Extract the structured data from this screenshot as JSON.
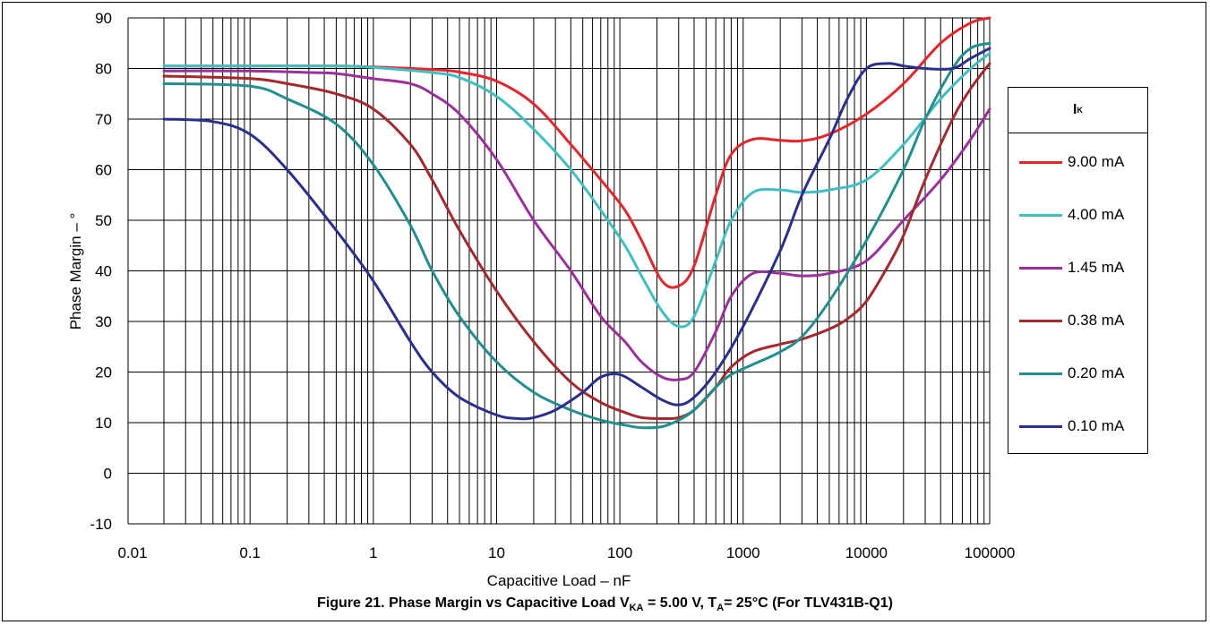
{
  "caption": {
    "prefix": "Figure 21. Phase Margin vs Capacitive Load V",
    "vka_sub": "KA",
    "middle": " = 5.00 V, T",
    "ta_sub": "A",
    "suffix": "= 25°C (For TLV431B-Q1)"
  },
  "legend": {
    "title_main": "I",
    "title_sub": "K"
  },
  "chart_data": {
    "type": "line",
    "xlabel": "Capacitive Load – nF",
    "ylabel": "Phase Margin – °",
    "xscale": "log",
    "xlim": [
      0.01,
      100000
    ],
    "ylim": [
      -10,
      90
    ],
    "x_ticks": [
      "0.01",
      "0.1",
      "1",
      "10",
      "100",
      "1000",
      "10000",
      "100000"
    ],
    "y_ticks": [
      "-10",
      "0",
      "10",
      "20",
      "30",
      "40",
      "50",
      "60",
      "70",
      "80",
      "90"
    ],
    "grid": true,
    "legend_position": "right",
    "series": [
      {
        "name": "9.00 mA",
        "color": "#e8242a",
        "points": [
          [
            0.02,
            80.5
          ],
          [
            0.1,
            80.5
          ],
          [
            0.5,
            80.5
          ],
          [
            1,
            80.3
          ],
          [
            3,
            79.8
          ],
          [
            5,
            79.3
          ],
          [
            10,
            77.5
          ],
          [
            20,
            73
          ],
          [
            40,
            65
          ],
          [
            70,
            58
          ],
          [
            110,
            52
          ],
          [
            150,
            46
          ],
          [
            220,
            38
          ],
          [
            300,
            37
          ],
          [
            400,
            41
          ],
          [
            600,
            55
          ],
          [
            800,
            63
          ],
          [
            1200,
            66
          ],
          [
            2000,
            65.8
          ],
          [
            3000,
            65.7
          ],
          [
            5000,
            67
          ],
          [
            10000,
            71
          ],
          [
            20000,
            77
          ],
          [
            40000,
            85
          ],
          [
            70000,
            89
          ],
          [
            100000,
            90
          ]
        ]
      },
      {
        "name": "4.00 mA",
        "color": "#3fbfbf",
        "points": [
          [
            0.02,
            80.5
          ],
          [
            0.1,
            80.5
          ],
          [
            0.5,
            80.5
          ],
          [
            1,
            80.2
          ],
          [
            3,
            79.2
          ],
          [
            5,
            78.2
          ],
          [
            10,
            74.5
          ],
          [
            20,
            68
          ],
          [
            40,
            60
          ],
          [
            70,
            52
          ],
          [
            110,
            45
          ],
          [
            150,
            39
          ],
          [
            220,
            32
          ],
          [
            300,
            29
          ],
          [
            400,
            31
          ],
          [
            600,
            42
          ],
          [
            800,
            50
          ],
          [
            1200,
            55.5
          ],
          [
            2000,
            56
          ],
          [
            3000,
            55.5
          ],
          [
            5000,
            56
          ],
          [
            10000,
            58
          ],
          [
            20000,
            65
          ],
          [
            40000,
            74
          ],
          [
            70000,
            80
          ],
          [
            100000,
            83
          ]
        ]
      },
      {
        "name": "1.45 mA",
        "color": "#9b2f9b",
        "points": [
          [
            0.02,
            79.5
          ],
          [
            0.1,
            79.5
          ],
          [
            0.3,
            79.2
          ],
          [
            0.5,
            79
          ],
          [
            1,
            78
          ],
          [
            2,
            77
          ],
          [
            3,
            75
          ],
          [
            5,
            71
          ],
          [
            10,
            62
          ],
          [
            20,
            50
          ],
          [
            40,
            40
          ],
          [
            70,
            31
          ],
          [
            110,
            26
          ],
          [
            150,
            22
          ],
          [
            220,
            19
          ],
          [
            300,
            18.5
          ],
          [
            400,
            20
          ],
          [
            600,
            28
          ],
          [
            800,
            35
          ],
          [
            1200,
            39.5
          ],
          [
            2000,
            39.5
          ],
          [
            3000,
            39
          ],
          [
            5000,
            39.5
          ],
          [
            10000,
            42
          ],
          [
            20000,
            50
          ],
          [
            40000,
            58
          ],
          [
            70000,
            66
          ],
          [
            100000,
            72
          ]
        ]
      },
      {
        "name": "0.38 mA",
        "color": "#a5282c",
        "points": [
          [
            0.02,
            78.5
          ],
          [
            0.1,
            78
          ],
          [
            0.2,
            77
          ],
          [
            0.5,
            75
          ],
          [
            1,
            72
          ],
          [
            2,
            65
          ],
          [
            3,
            58
          ],
          [
            5,
            48
          ],
          [
            10,
            36
          ],
          [
            20,
            26
          ],
          [
            40,
            18
          ],
          [
            70,
            14
          ],
          [
            110,
            12
          ],
          [
            150,
            11
          ],
          [
            220,
            10.8
          ],
          [
            300,
            11
          ],
          [
            400,
            12.5
          ],
          [
            600,
            17
          ],
          [
            800,
            21
          ],
          [
            1200,
            24
          ],
          [
            2000,
            25.5
          ],
          [
            3000,
            26.5
          ],
          [
            5000,
            28.5
          ],
          [
            7000,
            30.5
          ],
          [
            10000,
            34
          ],
          [
            15000,
            41
          ],
          [
            20000,
            47
          ],
          [
            30000,
            58
          ],
          [
            50000,
            70
          ],
          [
            70000,
            76
          ],
          [
            100000,
            81
          ]
        ]
      },
      {
        "name": "0.20 mA",
        "color": "#1f8f8f",
        "points": [
          [
            0.02,
            77
          ],
          [
            0.1,
            76.5
          ],
          [
            0.2,
            74
          ],
          [
            0.5,
            69
          ],
          [
            1,
            61
          ],
          [
            2,
            49
          ],
          [
            3,
            40
          ],
          [
            5,
            31
          ],
          [
            10,
            22
          ],
          [
            20,
            16
          ],
          [
            40,
            12.5
          ],
          [
            70,
            10.5
          ],
          [
            110,
            9.5
          ],
          [
            150,
            9
          ],
          [
            220,
            9.2
          ],
          [
            300,
            10.5
          ],
          [
            400,
            12.5
          ],
          [
            600,
            17
          ],
          [
            800,
            19.5
          ],
          [
            1200,
            21.5
          ],
          [
            2000,
            24
          ],
          [
            3000,
            27
          ],
          [
            5000,
            34
          ],
          [
            10000,
            46
          ],
          [
            20000,
            60
          ],
          [
            30000,
            70
          ],
          [
            50000,
            80
          ],
          [
            70000,
            84
          ],
          [
            100000,
            85
          ]
        ]
      },
      {
        "name": "0.10 mA",
        "color": "#2a2f8f",
        "points": [
          [
            0.02,
            70
          ],
          [
            0.05,
            69.5
          ],
          [
            0.1,
            67
          ],
          [
            0.2,
            60
          ],
          [
            0.5,
            48
          ],
          [
            1,
            38
          ],
          [
            2,
            26
          ],
          [
            3,
            20
          ],
          [
            5,
            15
          ],
          [
            10,
            11.5
          ],
          [
            15,
            10.8
          ],
          [
            20,
            11
          ],
          [
            30,
            12.5
          ],
          [
            50,
            16
          ],
          [
            70,
            19
          ],
          [
            100,
            19.5
          ],
          [
            150,
            17
          ],
          [
            220,
            14.5
          ],
          [
            300,
            13.5
          ],
          [
            400,
            15
          ],
          [
            600,
            20
          ],
          [
            1000,
            29
          ],
          [
            2000,
            44
          ],
          [
            3000,
            55
          ],
          [
            5000,
            66
          ],
          [
            7000,
            74
          ],
          [
            10000,
            80
          ],
          [
            15000,
            81
          ],
          [
            20000,
            80.5
          ],
          [
            30000,
            80
          ],
          [
            50000,
            80
          ],
          [
            70000,
            82
          ],
          [
            100000,
            84
          ]
        ]
      }
    ]
  }
}
